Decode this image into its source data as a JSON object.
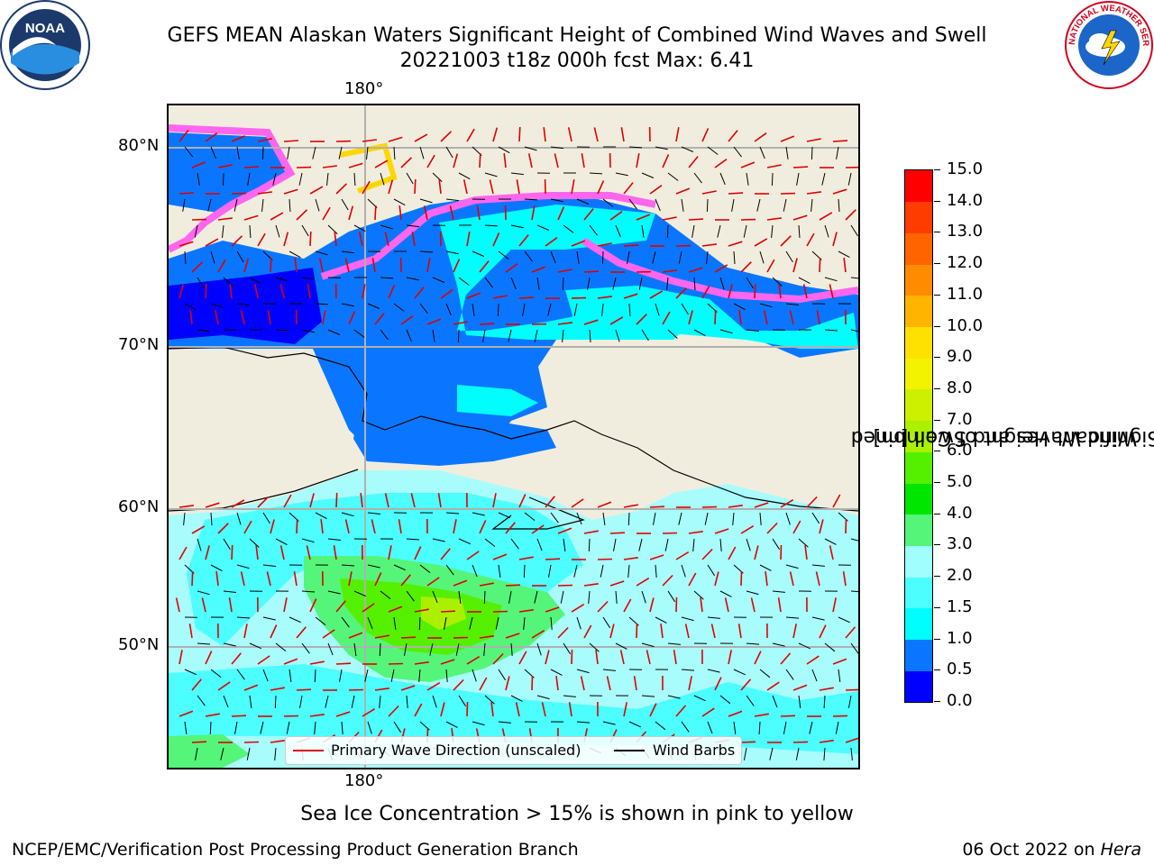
{
  "header": {
    "title_line1": "GEFS MEAN Alaskan Waters Significant Height of Combined Wind Waves and Swell",
    "title_line2": "20221003 t18z 000h fcst   Max: 6.41"
  },
  "logos": {
    "noaa_text": "NOAA",
    "nws_text": "NATIONAL WEATHER SERVICE"
  },
  "map": {
    "lon_label_top": "180°",
    "lon_label_bottom": "180°",
    "lat_labels": [
      "80°N",
      "70°N",
      "60°N",
      "50°N"
    ],
    "ocean_color": "#a8fcfc",
    "land_color": "#f1edde",
    "ice_color": "#ff66ee"
  },
  "legend": {
    "wave_direction_label": "Primary Wave Direction (unscaled)",
    "wind_barbs_label": "Wind Barbs",
    "wave_color": "#e00000",
    "barb_color": "#000000"
  },
  "colorbar": {
    "label_line1": "Significant Height of Combined",
    "label_line2": "Wind Waves and Swell [m]",
    "ticks": [
      "0.0",
      "0.5",
      "1.0",
      "1.5",
      "2.0",
      "3.0",
      "4.0",
      "5.0",
      "6.0",
      "7.0",
      "8.0",
      "9.0",
      "10.0",
      "11.0",
      "12.0",
      "13.0",
      "14.0",
      "15.0"
    ],
    "colors": [
      "#0000ff",
      "#0a76ff",
      "#00fefe",
      "#4cfefe",
      "#a0fefe",
      "#55f57a",
      "#00e600",
      "#55f000",
      "#aaf000",
      "#ccf000",
      "#f3f300",
      "#ffe100",
      "#ffb400",
      "#ff8c00",
      "#ff6400",
      "#ff3c00",
      "#ff0000"
    ]
  },
  "footer": {
    "sea_ice_note": "Sea Ice Concentration > 15% is shown in pink to yellow",
    "left_text": "NCEP/EMC/Verification Post Processing Product Generation Branch",
    "date_text": "06 Oct 2022 on ",
    "host_text": "Hera"
  }
}
